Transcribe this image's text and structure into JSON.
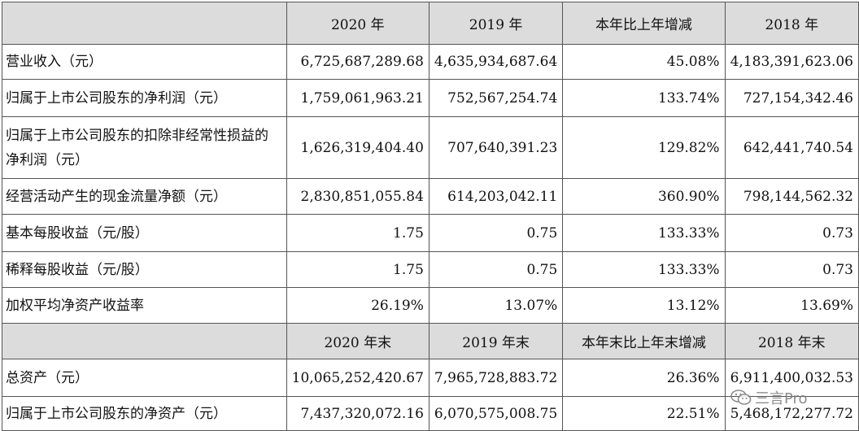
{
  "header1": {
    "col1": "2020 年",
    "col2": "2019 年",
    "col3": "本年比上年增减",
    "col4": "2018 年"
  },
  "header2": {
    "col1": "2020 年末",
    "col2": "2019 年末",
    "col3": "本年末比上年末增减",
    "col4": "2018 年末"
  },
  "rows": [
    {
      "label": "营业收入（元）",
      "v2020": "6,725,687,289.68",
      "v2019": "4,635,934,687.64",
      "change": "45.08%",
      "v2018": "4,183,391,623.06"
    },
    {
      "label": "归属于上市公司股东的净利润（元）",
      "v2020": "1,759,061,963.21",
      "v2019": "752,567,254.74",
      "change": "133.74%",
      "v2018": "727,154,342.46"
    },
    {
      "label": "归属于上市公司股东的扣除非经常性损益的净利润（元）",
      "v2020": "1,626,319,404.40",
      "v2019": "707,640,391.23",
      "change": "129.82%",
      "v2018": "642,441,740.54"
    },
    {
      "label": "经营活动产生的现金流量净额（元）",
      "v2020": "2,830,851,055.84",
      "v2019": "614,203,042.11",
      "change": "360.90%",
      "v2018": "798,144,562.32"
    },
    {
      "label": "基本每股收益（元/股）",
      "v2020": "1.75",
      "v2019": "0.75",
      "change": "133.33%",
      "v2018": "0.73"
    },
    {
      "label": "稀释每股收益（元/股）",
      "v2020": "1.75",
      "v2019": "0.75",
      "change": "133.33%",
      "v2018": "0.73"
    },
    {
      "label": "加权平均净资产收益率",
      "v2020": "26.19%",
      "v2019": "13.07%",
      "change": "13.12%",
      "v2018": "13.69%"
    }
  ],
  "rows2": [
    {
      "label": "总资产（元）",
      "v2020": "10,065,252,420.67",
      "v2019": "7,965,728,883.72",
      "change": "26.36%",
      "v2018": "6,911,400,032.53"
    },
    {
      "label": "归属于上市公司股东的净资产（元）",
      "v2020": "7,437,320,072.16",
      "v2019": "6,070,575,008.75",
      "change": "22.51%",
      "v2018": "5,468,172,277.72"
    }
  ],
  "watermark": {
    "text": "三言Pro",
    "icon": "wechat-icon"
  }
}
